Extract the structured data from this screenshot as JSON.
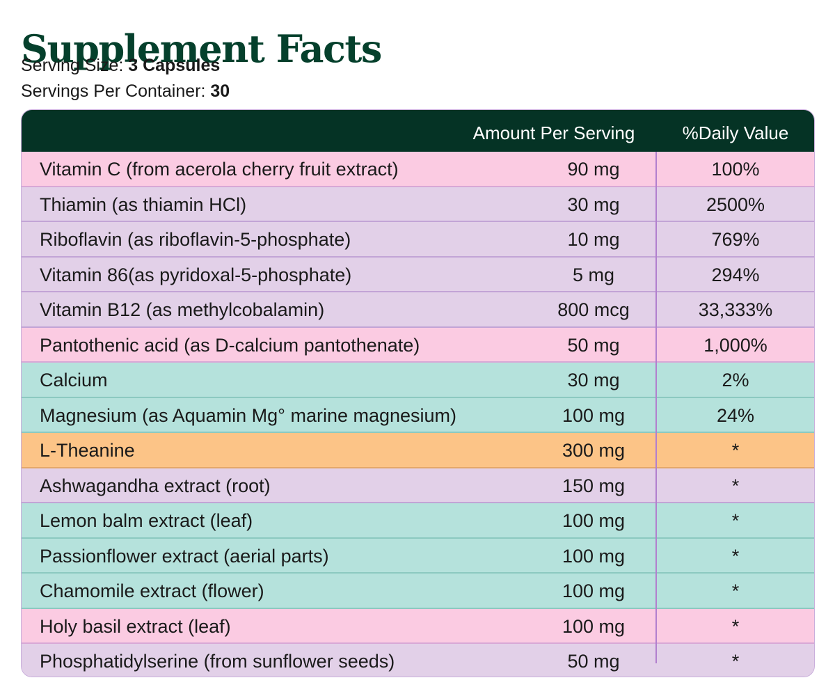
{
  "title": "Supplement Facts",
  "serving_size": {
    "label": "Serving Size: ",
    "value": "3 Capsules"
  },
  "servings_per_container": {
    "label": "Servings Per Container: ",
    "value": "30"
  },
  "table": {
    "headers": {
      "amount": "Amount Per Serving",
      "daily_value": "%Daily Value"
    },
    "row_colors": {
      "pink": "#fbcbe2",
      "lilac": "#e2d0e8",
      "teal": "#b5e2dc",
      "orange": "#fcc487",
      "header": "#053325"
    },
    "rows": [
      {
        "name": "Vitamin C (from acerola cherry fruit extract)",
        "amount": "90 mg",
        "dv": "100%",
        "color": "pink"
      },
      {
        "name": "Thiamin (as thiamin HCl)",
        "amount": "30 mg",
        "dv": "2500%",
        "color": "lilac"
      },
      {
        "name": "Riboflavin (as riboflavin-5-phosphate)",
        "amount": "10 mg",
        "dv": "769%",
        "color": "lilac"
      },
      {
        "name": "Vitamin 86(as pyridoxal-5-phosphate)",
        "amount": "5 mg",
        "dv": "294%",
        "color": "lilac"
      },
      {
        "name": "Vitamin B12 (as methylcobalamin)",
        "amount": "800 mcg",
        "dv": "33,333%",
        "color": "lilac"
      },
      {
        "name": "Pantothenic acid (as D-calcium pantothenate)",
        "amount": "50 mg",
        "dv": "1,000%",
        "color": "pink"
      },
      {
        "name": "Calcium",
        "amount": "30 mg",
        "dv": "2%",
        "color": "teal"
      },
      {
        "name": "Magnesium (as Aquamin Mg° marine magnesium)",
        "amount": "100 mg",
        "dv": "24%",
        "color": "teal"
      },
      {
        "name": "L-Theanine",
        "amount": "300 mg",
        "dv": "*",
        "color": "orange"
      },
      {
        "name": "Ashwagandha extract (root)",
        "amount": "150 mg",
        "dv": "*",
        "color": "lilac"
      },
      {
        "name": "Lemon balm extract (leaf)",
        "amount": "100 mg",
        "dv": "*",
        "color": "teal"
      },
      {
        "name": "Passionflower extract (aerial parts)",
        "amount": "100 mg",
        "dv": "*",
        "color": "teal"
      },
      {
        "name": "Chamomile extract (flower)",
        "amount": "100 mg",
        "dv": "*",
        "color": "teal"
      },
      {
        "name": "Holy basil extract (leaf)",
        "amount": "100 mg",
        "dv": "*",
        "color": "pink"
      },
      {
        "name": "Phosphatidylserine (from sunflower seeds)",
        "amount": "50 mg",
        "dv": "*",
        "color": "lilac"
      }
    ]
  }
}
